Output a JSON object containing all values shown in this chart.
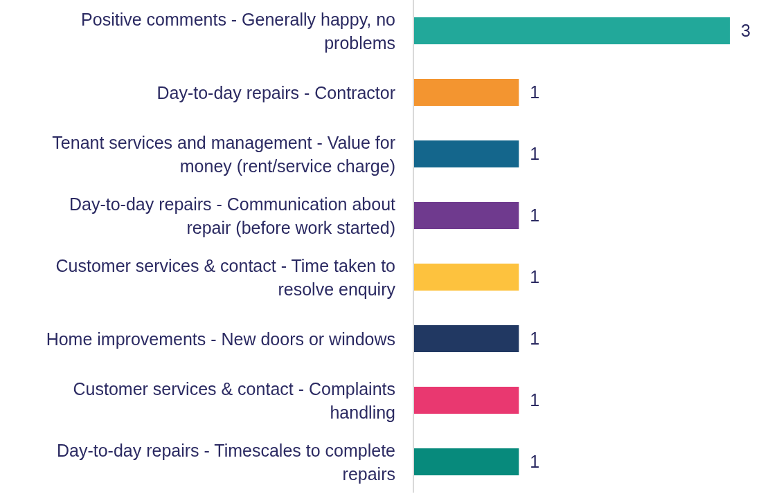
{
  "chart_data": {
    "type": "bar",
    "orientation": "horizontal",
    "categories": [
      "Positive comments - Generally happy, no problems",
      "Day-to-day repairs - Contractor",
      "Tenant services and management - Value for money (rent/service charge)",
      "Day-to-day repairs - Communication about repair (before work started)",
      "Customer services & contact - Time taken to resolve enquiry",
      "Home improvements - New doors or windows",
      "Customer services & contact - Complaints handling",
      "Day-to-day repairs - Timescales to complete repairs"
    ],
    "values": [
      3,
      1,
      1,
      1,
      1,
      1,
      1,
      1
    ],
    "colors": [
      "#22a89a",
      "#f39530",
      "#14668c",
      "#6f3a8e",
      "#fdc23e",
      "#213862",
      "#e93870",
      "#078a7c"
    ],
    "data_labels": true,
    "tick_labels": "y",
    "grid": false,
    "legend": false
  }
}
